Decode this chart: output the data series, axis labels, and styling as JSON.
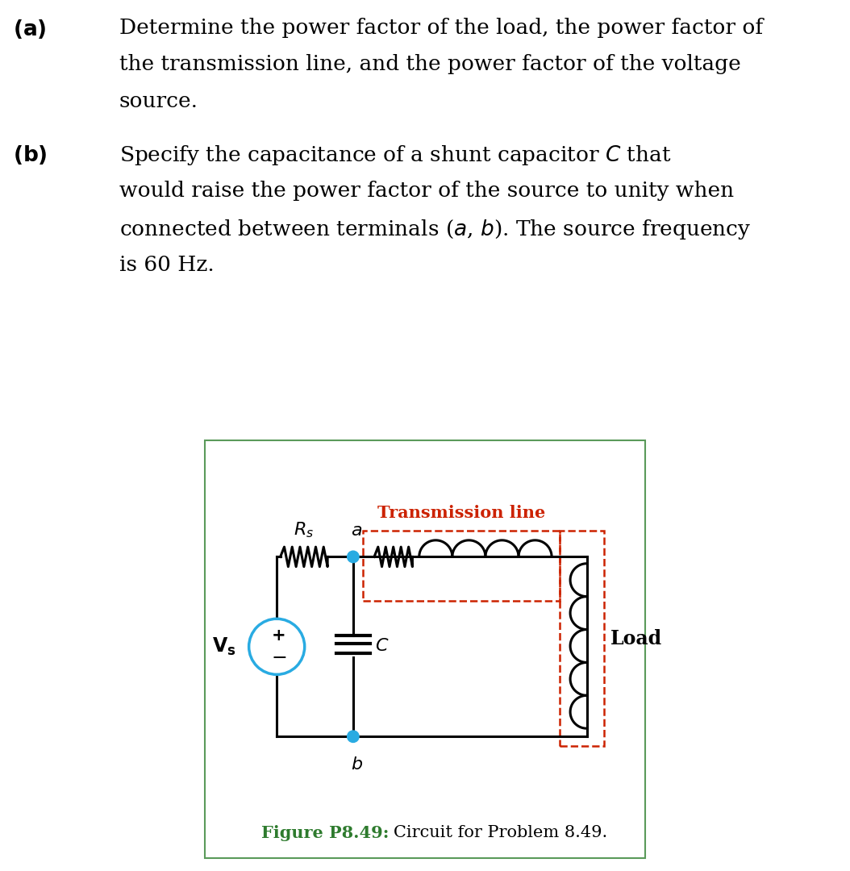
{
  "bg_color": "#ffffff",
  "text_color": "#000000",
  "teal_color": "#29ABE2",
  "red_color": "#CC2200",
  "green_color": "#2E7B2E",
  "border_color": "#5a9a5a",
  "fig_caption_bold": "Figure P8.49:",
  "fig_caption_normal": " Circuit for Problem 8.49.",
  "transmission_line_label": "Transmission line",
  "load_label": "Load",
  "rs_label": "$R_s$",
  "vs_label": "$\\mathbf{V_s}$",
  "a_label": "$a$",
  "b_label": "$b$",
  "C_label": "$C$",
  "text_fontsize": 19,
  "circuit_fontsize": 16
}
